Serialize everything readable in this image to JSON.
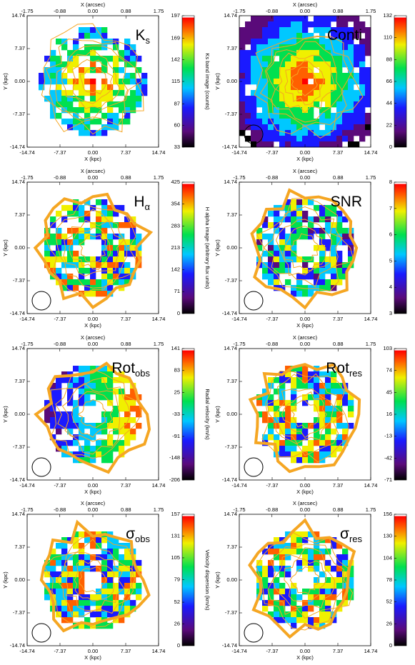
{
  "chart_data": [
    {
      "type": "image",
      "title": "K",
      "title_sub": "s",
      "xlabel": "X (kpc)",
      "x2label": "X (arcsec)",
      "ylabel": "Y (kpc)",
      "xlim": [
        -14.74,
        14.74
      ],
      "xticks": [
        -14.74,
        -7.37,
        {
          "value": 0,
          "label": "0.00"
        },
        7.37,
        14.74
      ],
      "x2lim": [
        -1.75,
        1.75
      ],
      "x2ticks": [
        -1.75,
        -0.88,
        {
          "value": 0,
          "label": "0.00"
        },
        0.88,
        1.75
      ],
      "ylim": [
        -14.74,
        14.74
      ],
      "yticks": [
        -14.74,
        -7.37,
        {
          "value": 0,
          "label": "0.00"
        },
        7.37,
        14.74
      ],
      "colorbar": {
        "label": "Ks band image (counts)",
        "lim": [
          33,
          197
        ],
        "ticks": [
          33,
          60,
          87,
          115,
          142,
          169,
          197
        ]
      }
    },
    {
      "type": "image",
      "title": "Conti",
      "xlabel": "X (kpc)",
      "x2label": "X (arcsec)",
      "ylabel": "Y (kpc)",
      "xlim": [
        -14.74,
        14.74
      ],
      "xticks": [
        -14.74,
        -7.37,
        {
          "value": 0,
          "label": "0.00"
        },
        7.37,
        14.74
      ],
      "x2lim": [
        -1.75,
        1.75
      ],
      "x2ticks": [
        -1.75,
        -0.88,
        {
          "value": 0,
          "label": "0.00"
        },
        0.88,
        1.75
      ],
      "ylim": [
        -14.74,
        14.74
      ],
      "yticks": [
        -14.74,
        -7.37,
        {
          "value": 0,
          "label": "0.00"
        },
        7.37,
        14.74
      ],
      "colorbar": {
        "label": "H band continuum image (arbitrary flux units)",
        "lim": [
          0,
          132
        ],
        "ticks": [
          0,
          22,
          44,
          66,
          88,
          110,
          132
        ]
      }
    },
    {
      "type": "image",
      "title": "H",
      "title_sub": "α",
      "xlabel": "X (kpc)",
      "x2label": "X (arcsec)",
      "ylabel": "Y (kpc)",
      "xlim": [
        -14.74,
        14.74
      ],
      "xticks": [
        -14.74,
        -7.37,
        {
          "value": 0,
          "label": "0.00"
        },
        7.37,
        14.74
      ],
      "x2lim": [
        -1.75,
        1.75
      ],
      "x2ticks": [
        -1.75,
        -0.88,
        {
          "value": 0,
          "label": "0.00"
        },
        0.88,
        1.75
      ],
      "ylim": [
        -14.74,
        14.74
      ],
      "yticks": [
        -14.74,
        -7.37,
        {
          "value": 0,
          "label": "0.00"
        },
        7.37,
        14.74
      ],
      "colorbar": {
        "label": "H alpha image (arbitrary flux units)",
        "lim": [
          0,
          425
        ],
        "ticks": [
          0,
          71,
          142,
          213,
          283,
          354,
          425
        ]
      }
    },
    {
      "type": "image",
      "title": "SNR",
      "xlabel": "X (kpc)",
      "x2label": "X (arcsec)",
      "ylabel": "Y (kpc)",
      "xlim": [
        -14.74,
        14.74
      ],
      "xticks": [
        -14.74,
        -7.37,
        {
          "value": 0,
          "label": "0.00"
        },
        7.37,
        14.74
      ],
      "x2lim": [
        -1.75,
        1.75
      ],
      "x2ticks": [
        -1.75,
        -0.88,
        {
          "value": 0,
          "label": "0.00"
        },
        0.88,
        1.75
      ],
      "ylim": [
        -14.74,
        14.74
      ],
      "yticks": [
        -14.74,
        -7.37,
        {
          "value": 0,
          "label": "0.00"
        },
        7.37,
        14.74
      ],
      "colorbar": {
        "label": "SNR image",
        "lim": [
          3,
          8
        ],
        "ticks": [
          3,
          4,
          5,
          6,
          7,
          8
        ]
      }
    },
    {
      "type": "image",
      "title": "Rot",
      "title_sub": "obs",
      "xlabel": "X (kpc)",
      "x2label": "X (arcsec)",
      "ylabel": "Y (kpc)",
      "xlim": [
        -14.74,
        14.74
      ],
      "xticks": [
        -14.74,
        -7.37,
        {
          "value": 0,
          "label": "0.00"
        },
        7.37,
        14.74
      ],
      "x2lim": [
        -1.75,
        1.75
      ],
      "x2ticks": [
        -1.75,
        -0.88,
        {
          "value": 0,
          "label": "0.00"
        },
        0.88,
        1.75
      ],
      "ylim": [
        -14.74,
        14.74
      ],
      "yticks": [
        -14.74,
        -7.37,
        {
          "value": 0,
          "label": "0.00"
        },
        7.37,
        14.74
      ],
      "colorbar": {
        "label": "Radial velocity (km/s)",
        "lim": [
          -206,
          141
        ],
        "ticks": [
          -206,
          -148,
          -91,
          -33,
          25,
          83,
          141
        ]
      }
    },
    {
      "type": "image",
      "title": "Rot",
      "title_sub": "res",
      "xlabel": "X (kpc)",
      "x2label": "X (arcsec)",
      "ylabel": "Y (kpc)",
      "xlim": [
        -14.74,
        14.74
      ],
      "xticks": [
        -14.74,
        -7.37,
        {
          "value": 0,
          "label": "0.00"
        },
        7.37,
        14.74
      ],
      "x2lim": [
        -1.75,
        1.75
      ],
      "x2ticks": [
        -1.75,
        -0.88,
        {
          "value": 0,
          "label": "0.00"
        },
        0.88,
        1.75
      ],
      "ylim": [
        -14.74,
        14.74
      ],
      "yticks": [
        -14.74,
        -7.37,
        {
          "value": 0,
          "label": "0.00"
        },
        7.37,
        14.74
      ],
      "colorbar": {
        "label": "Residual rotational velocity (km/s)",
        "lim": [
          -71,
          103
        ],
        "ticks": [
          -71,
          -42,
          -13,
          16,
          45,
          74,
          103
        ]
      }
    },
    {
      "type": "image",
      "title": "σ",
      "title_sub": "obs",
      "xlabel": "X (kpc)",
      "x2label": "X (arcsec)",
      "ylabel": "Y (kpc)",
      "xlim": [
        -14.74,
        14.74
      ],
      "xticks": [
        -14.74,
        -7.37,
        {
          "value": 0,
          "label": "0.00"
        },
        7.37,
        14.74
      ],
      "x2lim": [
        -1.75,
        1.75
      ],
      "x2ticks": [
        -1.75,
        -0.88,
        {
          "value": 0,
          "label": "0.00"
        },
        0.88,
        1.75
      ],
      "ylim": [
        -14.74,
        14.74
      ],
      "yticks": [
        -14.74,
        -7.37,
        {
          "value": 0,
          "label": "0.00"
        },
        7.37,
        14.74
      ],
      "colorbar": {
        "label": "Velocity dispersion (km/s)",
        "lim": [
          0,
          157
        ],
        "ticks": [
          0,
          26,
          52,
          79,
          105,
          131,
          157
        ]
      }
    },
    {
      "type": "image",
      "title": "σ",
      "title_sub": "res",
      "xlabel": "X (kpc)",
      "x2label": "X (arcsec)",
      "ylabel": "Y (kpc)",
      "xlim": [
        -14.74,
        14.74
      ],
      "xticks": [
        -14.74,
        -7.37,
        {
          "value": 0,
          "label": "0.00"
        },
        7.37,
        14.74
      ],
      "x2lim": [
        -1.75,
        1.75
      ],
      "x2ticks": [
        -1.75,
        -0.88,
        {
          "value": 0,
          "label": "0.00"
        },
        0.88,
        1.75
      ],
      "ylim": [
        -14.74,
        14.74
      ],
      "yticks": [
        -14.74,
        -7.37,
        {
          "value": 0,
          "label": "0.00"
        },
        7.37,
        14.74
      ],
      "colorbar": {
        "label": "Residual velocity dispersion (km/s)",
        "lim": [
          0,
          156
        ],
        "ticks": [
          0,
          26,
          52,
          78,
          104,
          130,
          156
        ]
      }
    }
  ]
}
